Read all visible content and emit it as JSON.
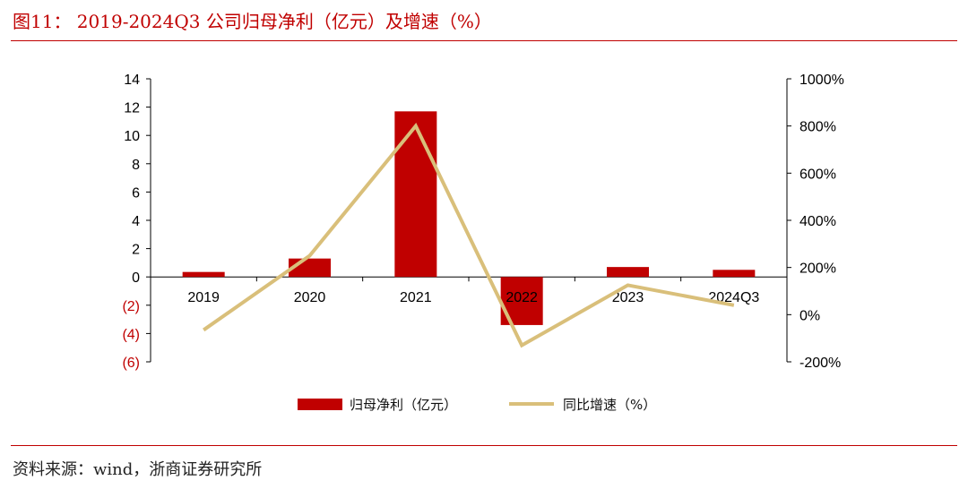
{
  "figure": {
    "title": "图11：  2019-2024Q3 公司归母净利（亿元）及增速（%）",
    "source": "资料来源：wind，浙商证券研究所"
  },
  "colors": {
    "bar": "#c00000",
    "line": "#d9bf7a",
    "negative_tick": "#c00000",
    "rule": "#c00000"
  },
  "chart_data": {
    "type": "bar",
    "categories": [
      "2019",
      "2020",
      "2021",
      "2022",
      "2023",
      "2024Q3"
    ],
    "series": [
      {
        "name": "归母净利（亿元）",
        "type": "bar",
        "axis": "left",
        "values": [
          0.35,
          1.3,
          11.7,
          -3.4,
          0.7,
          0.5
        ]
      },
      {
        "name": "同比增速（%）",
        "type": "line",
        "axis": "right",
        "values": [
          -65,
          250,
          800,
          -130,
          125,
          40
        ]
      }
    ],
    "y_left": {
      "range": [
        -6,
        14
      ],
      "ticks": [
        14,
        12,
        10,
        8,
        6,
        4,
        2,
        0,
        -2,
        -4,
        -6
      ],
      "tick_labels": [
        "14",
        "12",
        "10",
        "8",
        "6",
        "4",
        "2",
        "0",
        "(2)",
        "(4)",
        "(6)"
      ]
    },
    "y_right": {
      "range": [
        -200,
        1000
      ],
      "ticks": [
        1000,
        800,
        600,
        400,
        200,
        0,
        -200
      ],
      "tick_labels": [
        "1000%",
        "800%",
        "600%",
        "400%",
        "200%",
        "0%",
        "-200%"
      ]
    },
    "grid": false,
    "legend": "bottom"
  }
}
